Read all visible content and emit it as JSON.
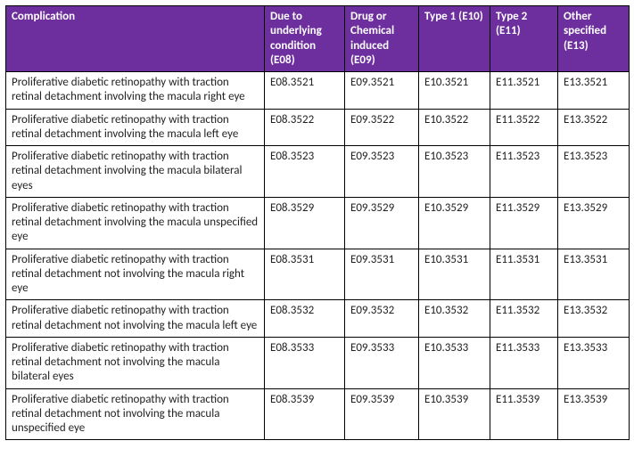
{
  "table": {
    "header_bg": "#6E2F9E",
    "header_fg": "#FFFFFF",
    "body_fg": "#222222",
    "columns": [
      "Complication",
      "Due to underlying condition (E08)",
      "Drug or Chemical induced (E09)",
      "Type 1 (E10)",
      "Type 2 (E11)",
      "Other specified (E13)"
    ],
    "rows": [
      {
        "complication": "Proliferative diabetic retinopathy with traction retinal detachment involving the macula right eye",
        "e08": "E08.3521",
        "e09": "E09.3521",
        "e10": "E10.3521",
        "e11": "E11.3521",
        "e13": "E13.3521"
      },
      {
        "complication": "Proliferative diabetic retinopathy with traction retinal detachment involving the macula left eye",
        "e08": "E08.3522",
        "e09": "E09.3522",
        "e10": "E10.3522",
        "e11": "E11.3522",
        "e13": "E13.3522"
      },
      {
        "complication": "Proliferative diabetic retinopathy with traction retinal detachment involving the macula bilateral eyes",
        "e08": "E08.3523",
        "e09": "E09.3523",
        "e10": "E10.3523",
        "e11": "E11.3523",
        "e13": "E13.3523"
      },
      {
        "complication": "Proliferative diabetic retinopathy with traction retinal detachment involving the macula unspecified eye",
        "e08": "E08.3529",
        "e09": "E09.3529",
        "e10": "E10.3529",
        "e11": "E11.3529",
        "e13": "E13.3529"
      },
      {
        "complication": "Proliferative diabetic retinopathy with traction retinal detachment not involving the macula right eye",
        "e08": "E08.3531",
        "e09": "E09.3531",
        "e10": "E10.3531",
        "e11": "E11.3531",
        "e13": "E13.3531"
      },
      {
        "complication": "Proliferative diabetic retinopathy with traction retinal detachment not involving the macula left eye",
        "e08": "E08.3532",
        "e09": "E09.3532",
        "e10": "E10.3532",
        "e11": "E11.3532",
        "e13": "E13.3532"
      },
      {
        "complication": "Proliferative diabetic retinopathy with traction retinal detachment not involving the macula bilateral eyes",
        "e08": "E08.3533",
        "e09": "E09.3533",
        "e10": "E10.3533",
        "e11": "E11.3533",
        "e13": "E13.3533"
      },
      {
        "complication": "Proliferative diabetic retinopathy with traction retinal detachment not involving the macula unspecified eye",
        "e08": "E08.3539",
        "e09": "E09.3539",
        "e10": "E10.3539",
        "e11": "E11.3539",
        "e13": "E13.3539"
      }
    ]
  }
}
